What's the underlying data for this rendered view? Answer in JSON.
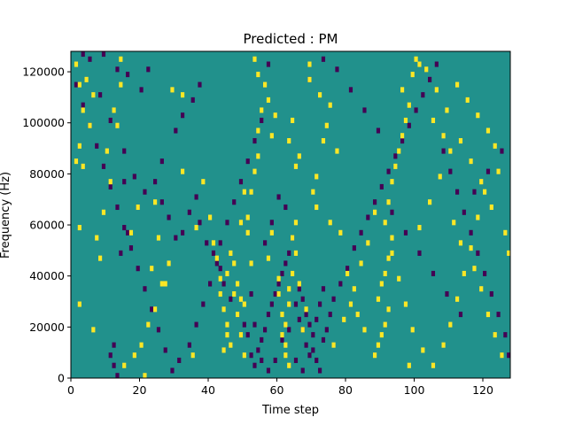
{
  "chart_data": {
    "type": "heatmap",
    "title": "Predicted : PM",
    "xlabel": "Time step",
    "ylabel": "Frequency (Hz)",
    "xlim": [
      0,
      128
    ],
    "ylim": [
      0,
      128000
    ],
    "x_ticks": [
      0,
      20,
      40,
      60,
      80,
      100,
      120
    ],
    "y_ticks": [
      0,
      20000,
      40000,
      60000,
      80000,
      100000,
      120000
    ],
    "n_time_steps": 128,
    "n_freq_bins": 64,
    "grid": false,
    "legend": "none",
    "colors": {
      "background_value": "#21918c",
      "high_value": "#fde725",
      "low_value": "#440154"
    },
    "notes_high_cells": "cells rendered in yellow (value high)",
    "yellow_cells": [
      [
        1,
        61
      ],
      [
        2,
        57
      ],
      [
        3,
        52
      ],
      [
        4,
        58
      ],
      [
        5,
        49
      ],
      [
        6,
        55
      ],
      [
        2,
        45
      ],
      [
        1,
        42
      ],
      [
        2,
        29
      ],
      [
        3,
        41
      ],
      [
        14,
        62
      ],
      [
        14,
        57
      ],
      [
        12,
        52
      ],
      [
        13,
        49
      ],
      [
        10,
        44
      ],
      [
        11,
        38
      ],
      [
        9,
        32
      ],
      [
        7,
        27
      ],
      [
        8,
        23
      ],
      [
        2,
        14
      ],
      [
        6,
        9
      ],
      [
        17,
        28
      ],
      [
        19,
        33
      ],
      [
        23,
        21
      ],
      [
        26,
        18
      ],
      [
        24,
        13
      ],
      [
        22,
        10
      ],
      [
        20,
        6
      ],
      [
        18,
        4
      ],
      [
        15,
        2
      ],
      [
        21,
        0
      ],
      [
        24,
        34
      ],
      [
        25,
        27
      ],
      [
        28,
        22
      ],
      [
        27,
        18
      ],
      [
        35,
        4
      ],
      [
        32,
        40
      ],
      [
        36,
        29
      ],
      [
        29,
        56
      ],
      [
        32,
        55
      ],
      [
        38,
        38
      ],
      [
        40,
        31
      ],
      [
        41,
        26
      ],
      [
        42,
        23
      ],
      [
        43,
        19
      ],
      [
        43,
        16
      ],
      [
        44,
        13
      ],
      [
        45,
        10
      ],
      [
        45,
        8
      ],
      [
        46,
        6
      ],
      [
        44,
        5
      ],
      [
        47,
        16
      ],
      [
        48,
        12
      ],
      [
        49,
        8
      ],
      [
        50,
        4
      ],
      [
        45,
        20
      ],
      [
        46,
        24
      ],
      [
        47,
        22
      ],
      [
        48,
        18
      ],
      [
        49,
        15
      ],
      [
        50,
        14
      ],
      [
        52,
        22
      ],
      [
        51,
        28
      ],
      [
        51,
        31
      ],
      [
        52,
        36
      ],
      [
        53,
        40
      ],
      [
        54,
        43
      ],
      [
        54,
        48
      ],
      [
        55,
        52
      ],
      [
        56,
        57
      ],
      [
        58,
        28
      ],
      [
        57,
        23
      ],
      [
        60,
        19
      ],
      [
        60,
        16
      ],
      [
        61,
        12
      ],
      [
        61,
        8
      ],
      [
        62,
        4
      ],
      [
        63,
        2
      ],
      [
        62,
        6
      ],
      [
        62,
        10
      ],
      [
        63,
        14
      ],
      [
        63,
        17
      ],
      [
        64,
        20
      ],
      [
        65,
        24
      ],
      [
        64,
        27
      ],
      [
        65,
        30
      ],
      [
        65,
        41
      ],
      [
        66,
        43
      ],
      [
        63,
        46
      ],
      [
        64,
        50
      ],
      [
        69,
        58
      ],
      [
        69,
        61
      ],
      [
        75,
        53
      ],
      [
        77,
        44
      ],
      [
        70,
        36
      ],
      [
        71,
        33
      ],
      [
        75,
        30
      ],
      [
        78,
        28
      ],
      [
        80,
        20
      ],
      [
        82,
        17
      ],
      [
        83,
        12
      ],
      [
        85,
        9
      ],
      [
        88,
        4
      ],
      [
        89,
        6
      ],
      [
        90,
        8
      ],
      [
        91,
        10
      ],
      [
        92,
        13
      ],
      [
        89,
        15
      ],
      [
        90,
        18
      ],
      [
        91,
        20
      ],
      [
        92,
        23
      ],
      [
        93,
        27
      ],
      [
        91,
        30
      ],
      [
        92,
        34
      ],
      [
        93,
        38
      ],
      [
        94,
        41
      ],
      [
        95,
        44
      ],
      [
        96,
        47
      ],
      [
        97,
        50
      ],
      [
        98,
        53
      ],
      [
        96,
        56
      ],
      [
        99,
        59
      ],
      [
        101,
        61
      ],
      [
        105,
        50
      ],
      [
        108,
        47
      ],
      [
        110,
        44
      ],
      [
        112,
        57
      ],
      [
        115,
        54
      ],
      [
        118,
        51
      ],
      [
        121,
        48
      ],
      [
        123,
        45
      ],
      [
        124,
        40
      ],
      [
        120,
        36
      ],
      [
        118,
        31
      ],
      [
        116,
        25
      ],
      [
        114,
        20
      ],
      [
        112,
        15
      ],
      [
        110,
        10
      ],
      [
        108,
        6
      ],
      [
        105,
        2
      ],
      [
        102,
        5
      ],
      [
        99,
        9
      ],
      [
        97,
        14
      ],
      [
        95,
        19
      ],
      [
        93,
        24
      ],
      [
        101,
        29
      ],
      [
        104,
        34
      ],
      [
        107,
        39
      ],
      [
        111,
        30
      ],
      [
        113,
        26
      ],
      [
        117,
        21
      ],
      [
        119,
        17
      ],
      [
        121,
        12
      ],
      [
        123,
        8
      ],
      [
        125,
        4
      ],
      [
        127,
        24
      ],
      [
        126,
        28
      ],
      [
        122,
        33
      ],
      [
        119,
        38
      ],
      [
        116,
        42
      ],
      [
        113,
        46
      ],
      [
        109,
        52
      ],
      [
        106,
        56
      ],
      [
        103,
        60
      ],
      [
        100,
        62
      ],
      [
        98,
        2
      ],
      [
        76,
        6
      ],
      [
        79,
        11
      ],
      [
        81,
        14
      ],
      [
        84,
        22
      ],
      [
        86,
        26
      ],
      [
        88,
        32
      ],
      [
        71,
        39
      ],
      [
        73,
        46
      ],
      [
        74,
        49
      ],
      [
        72,
        55
      ],
      [
        67,
        9
      ],
      [
        68,
        13
      ],
      [
        66,
        18
      ],
      [
        58,
        47
      ],
      [
        59,
        51
      ],
      [
        57,
        54
      ],
      [
        54,
        59
      ],
      [
        53,
        62
      ],
      [
        50,
        36
      ],
      [
        49,
        30
      ]
    ],
    "purple_cells": [
      [
        3,
        63
      ],
      [
        5,
        62
      ],
      [
        9,
        63
      ],
      [
        13,
        60
      ],
      [
        16,
        59
      ],
      [
        8,
        55
      ],
      [
        11,
        50
      ],
      [
        15,
        44
      ],
      [
        18,
        39
      ],
      [
        19,
        33
      ],
      [
        21,
        36
      ],
      [
        24,
        38
      ],
      [
        26,
        34
      ],
      [
        28,
        31
      ],
      [
        30,
        27
      ],
      [
        32,
        28
      ],
      [
        34,
        32
      ],
      [
        36,
        35
      ],
      [
        37,
        30
      ],
      [
        39,
        26
      ],
      [
        41,
        24
      ],
      [
        43,
        21
      ],
      [
        44,
        18
      ],
      [
        46,
        15
      ],
      [
        48,
        12
      ],
      [
        50,
        10
      ],
      [
        51,
        8
      ],
      [
        52,
        4
      ],
      [
        53,
        2
      ],
      [
        54,
        5
      ],
      [
        55,
        7
      ],
      [
        56,
        9
      ],
      [
        57,
        12
      ],
      [
        58,
        14
      ],
      [
        59,
        16
      ],
      [
        60,
        18
      ],
      [
        61,
        20
      ],
      [
        62,
        22
      ],
      [
        63,
        24
      ],
      [
        64,
        27
      ],
      [
        65,
        14
      ],
      [
        66,
        11
      ],
      [
        67,
        9
      ],
      [
        68,
        6
      ],
      [
        69,
        4
      ],
      [
        70,
        8
      ],
      [
        71,
        11
      ],
      [
        72,
        14
      ],
      [
        73,
        17
      ],
      [
        66,
        17
      ],
      [
        67,
        15
      ],
      [
        68,
        12
      ],
      [
        69,
        10
      ],
      [
        70,
        5
      ],
      [
        71,
        3
      ],
      [
        72,
        1
      ],
      [
        73,
        7
      ],
      [
        74,
        9
      ],
      [
        75,
        12
      ],
      [
        76,
        15
      ],
      [
        78,
        18
      ],
      [
        80,
        21
      ],
      [
        82,
        25
      ],
      [
        84,
        28
      ],
      [
        86,
        31
      ],
      [
        88,
        34
      ],
      [
        90,
        37
      ],
      [
        92,
        40
      ],
      [
        94,
        43
      ],
      [
        96,
        46
      ],
      [
        98,
        49
      ],
      [
        100,
        52
      ],
      [
        102,
        55
      ],
      [
        104,
        58
      ],
      [
        106,
        61
      ],
      [
        108,
        44
      ],
      [
        110,
        40
      ],
      [
        112,
        36
      ],
      [
        114,
        32
      ],
      [
        116,
        28
      ],
      [
        118,
        24
      ],
      [
        120,
        20
      ],
      [
        122,
        16
      ],
      [
        124,
        12
      ],
      [
        126,
        8
      ],
      [
        127,
        4
      ],
      [
        125,
        44
      ],
      [
        121,
        40
      ],
      [
        117,
        36
      ],
      [
        113,
        12
      ],
      [
        109,
        16
      ],
      [
        105,
        20
      ],
      [
        101,
        24
      ],
      [
        97,
        28
      ],
      [
        93,
        32
      ],
      [
        89,
        48
      ],
      [
        85,
        52
      ],
      [
        81,
        56
      ],
      [
        77,
        60
      ],
      [
        73,
        62
      ],
      [
        69,
        58
      ],
      [
        57,
        61
      ],
      [
        55,
        50
      ],
      [
        53,
        46
      ],
      [
        51,
        42
      ],
      [
        49,
        38
      ],
      [
        47,
        34
      ],
      [
        45,
        30
      ],
      [
        43,
        26
      ],
      [
        42,
        22
      ],
      [
        40,
        18
      ],
      [
        38,
        14
      ],
      [
        36,
        10
      ],
      [
        34,
        6
      ],
      [
        31,
        3
      ],
      [
        29,
        1
      ],
      [
        27,
        5
      ],
      [
        25,
        9
      ],
      [
        23,
        13
      ],
      [
        21,
        17
      ],
      [
        19,
        21
      ],
      [
        17,
        25
      ],
      [
        15,
        29
      ],
      [
        13,
        33
      ],
      [
        11,
        37
      ],
      [
        9,
        41
      ],
      [
        7,
        45
      ],
      [
        5,
        49
      ],
      [
        3,
        53
      ],
      [
        1,
        57
      ],
      [
        12,
        2
      ],
      [
        11,
        4
      ],
      [
        13,
        0
      ],
      [
        12,
        6
      ],
      [
        15,
        38
      ],
      [
        16,
        28
      ],
      [
        14,
        24
      ],
      [
        26,
        42
      ],
      [
        30,
        48
      ],
      [
        32,
        51
      ],
      [
        35,
        54
      ],
      [
        37,
        57
      ],
      [
        22,
        60
      ],
      [
        20,
        56
      ],
      [
        60,
        35
      ],
      [
        62,
        33
      ],
      [
        58,
        30
      ],
      [
        56,
        26
      ],
      [
        61,
        7
      ],
      [
        63,
        9
      ],
      [
        65,
        3
      ],
      [
        67,
        1
      ],
      [
        59,
        3
      ],
      [
        57,
        1
      ],
      [
        55,
        3
      ],
      [
        53,
        10
      ],
      [
        52,
        16
      ]
    ]
  }
}
